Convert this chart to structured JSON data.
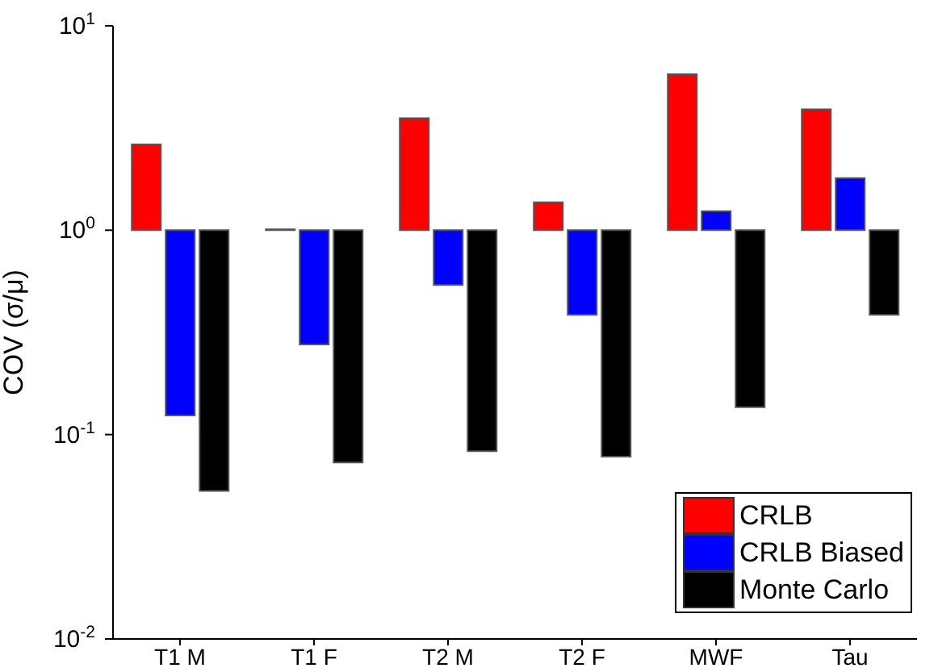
{
  "chart_data": {
    "type": "bar",
    "ylabel": "COV (σ/μ)",
    "log": true,
    "categories": [
      "T1  M",
      "T1  F",
      "T2  M",
      "T2  F",
      "MWF",
      "Tau"
    ],
    "series": [
      {
        "name": "CRLB",
        "color": "#ff0000",
        "base": [
          1,
          1,
          1,
          1,
          1,
          1
        ],
        "values": [
          1.63,
          0.01,
          2.53,
          0.37,
          4.8,
          2.9
        ]
      },
      {
        "name": "CRLB Biased",
        "color": "#0000ff",
        "base": [
          1,
          1,
          1,
          1,
          1,
          1
        ],
        "values": [
          -0.876,
          -0.724,
          -0.46,
          -0.615,
          0.24,
          0.8
        ]
      },
      {
        "name": "Monte Carlo",
        "color": "#000000",
        "base": [
          1,
          1,
          1,
          1,
          1,
          1
        ],
        "values": [
          -0.947,
          -0.927,
          -0.917,
          -0.922,
          -0.864,
          -0.615
        ]
      }
    ],
    "ylim": [
      0.01,
      10
    ],
    "yticks": [
      {
        "value": 0.01,
        "label": "10$^{-2}$"
      },
      {
        "value": 0.1,
        "label": "10$^{-1}$"
      },
      {
        "value": 1,
        "label": "10$^{0}$"
      },
      {
        "value": 10,
        "label": "10$^{1}$"
      }
    ],
    "grid": false,
    "legend": "bottom right"
  }
}
